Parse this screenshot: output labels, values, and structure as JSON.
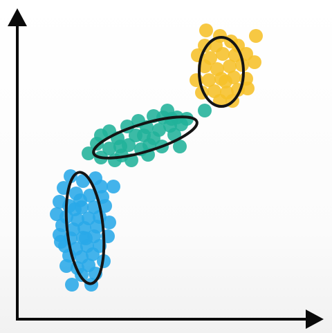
{
  "colors": {
    "axis": "#0a0a0a",
    "ellipse_stroke": "#141414",
    "blue": "#29a9e8",
    "teal": "#21b29a",
    "yellow": "#f6c029"
  },
  "clusters": [
    {
      "name": "blue",
      "color": "#29a9e8",
      "points": [
        [
          102,
          255
        ],
        [
          120,
          262
        ],
        [
          138,
          258
        ],
        [
          146,
          270
        ],
        [
          164,
          270
        ],
        [
          92,
          272
        ],
        [
          110,
          280
        ],
        [
          130,
          283
        ],
        [
          148,
          285
        ],
        [
          86,
          292
        ],
        [
          100,
          298
        ],
        [
          118,
          300
        ],
        [
          136,
          300
        ],
        [
          152,
          298
        ],
        [
          82,
          310
        ],
        [
          96,
          314
        ],
        [
          112,
          318
        ],
        [
          128,
          316
        ],
        [
          144,
          314
        ],
        [
          90,
          326
        ],
        [
          106,
          332
        ],
        [
          122,
          330
        ],
        [
          140,
          328
        ],
        [
          158,
          322
        ],
        [
          86,
          340
        ],
        [
          102,
          345
        ],
        [
          120,
          344
        ],
        [
          136,
          342
        ],
        [
          156,
          342
        ],
        [
          94,
          356
        ],
        [
          110,
          360
        ],
        [
          126,
          356
        ],
        [
          144,
          356
        ],
        [
          100,
          370
        ],
        [
          118,
          372
        ],
        [
          134,
          368
        ],
        [
          150,
          378
        ],
        [
          96,
          385
        ],
        [
          112,
          388
        ],
        [
          128,
          384
        ],
        [
          118,
          398
        ],
        [
          138,
          396
        ],
        [
          104,
          412
        ],
        [
          132,
          412
        ],
        [
          88,
          350
        ],
        [
          116,
          290
        ],
        [
          124,
          345
        ],
        [
          108,
          303
        ]
      ]
    },
    {
      "name": "teal",
      "color": "#21b29a",
      "points": [
        [
          128,
          222
        ],
        [
          140,
          208
        ],
        [
          146,
          228
        ],
        [
          158,
          215
        ],
        [
          170,
          200
        ],
        [
          176,
          225
        ],
        [
          186,
          210
        ],
        [
          196,
          196
        ],
        [
          204,
          216
        ],
        [
          212,
          184
        ],
        [
          222,
          200
        ],
        [
          230,
          188
        ],
        [
          236,
          170
        ],
        [
          246,
          182
        ],
        [
          252,
          195
        ],
        [
          256,
          170
        ],
        [
          262,
          180
        ],
        [
          270,
          172
        ],
        [
          166,
          232
        ],
        [
          190,
          232
        ],
        [
          214,
          224
        ],
        [
          234,
          212
        ],
        [
          260,
          212
        ],
        [
          146,
          196
        ],
        [
          184,
          183
        ],
        [
          200,
          175
        ],
        [
          222,
          168
        ],
        [
          242,
          160
        ],
        [
          296,
          160
        ],
        [
          208,
          196
        ],
        [
          174,
          212
        ],
        [
          216,
          210
        ],
        [
          248,
          172
        ],
        [
          158,
          190
        ]
      ]
    },
    {
      "name": "yellow",
      "color": "#f6c029",
      "points": [
        [
          298,
          44
        ],
        [
          318,
          52
        ],
        [
          334,
          60
        ],
        [
          296,
          66
        ],
        [
          344,
          66
        ],
        [
          370,
          52
        ],
        [
          286,
          80
        ],
        [
          304,
          84
        ],
        [
          322,
          78
        ],
        [
          340,
          80
        ],
        [
          356,
          78
        ],
        [
          296,
          96
        ],
        [
          314,
          100
        ],
        [
          332,
          96
        ],
        [
          350,
          94
        ],
        [
          368,
          90
        ],
        [
          284,
          116
        ],
        [
          302,
          116
        ],
        [
          320,
          114
        ],
        [
          338,
          112
        ],
        [
          356,
          114
        ],
        [
          292,
          134
        ],
        [
          310,
          132
        ],
        [
          328,
          134
        ],
        [
          344,
          130
        ],
        [
          358,
          128
        ],
        [
          318,
          146
        ],
        [
          336,
          146
        ],
        [
          312,
          66
        ],
        [
          326,
          118
        ]
      ]
    }
  ],
  "ellipses": [
    {
      "cx": 123,
      "cy": 330,
      "rx": 26,
      "ry": 81,
      "rotate": -6
    },
    {
      "cx": 210,
      "cy": 199,
      "rx": 78,
      "ry": 20,
      "rotate": -17
    },
    {
      "cx": 320,
      "cy": 104,
      "rx": 32,
      "ry": 50,
      "rotate": 0
    }
  ]
}
